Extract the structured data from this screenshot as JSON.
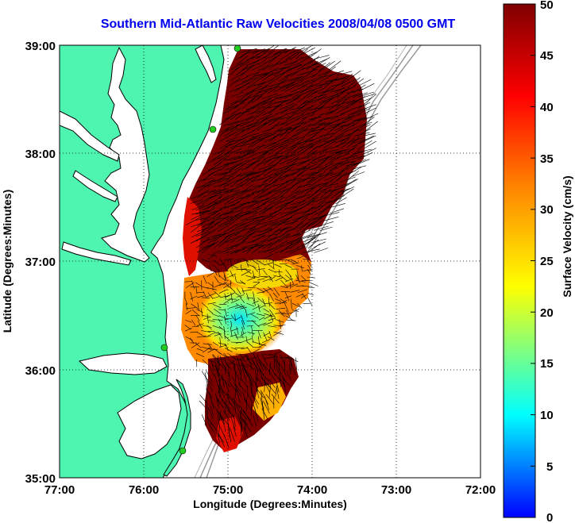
{
  "title": "Southern Mid-Atlantic Raw Velocities 2008/04/08 0500 GMT",
  "x_axis": {
    "label": "Longitude (Degrees:Minutes)",
    "ticks": [
      "77:00",
      "76:00",
      "75:00",
      "74:00",
      "73:00",
      "72:00"
    ]
  },
  "y_axis": {
    "label": "Latitude (Degrees:Minutes)",
    "ticks": [
      "39:00",
      "38:00",
      "37:00",
      "36:00",
      "35:00"
    ]
  },
  "colorbar": {
    "label": "Surface Velocity (cm/s)",
    "ticks": [
      "50",
      "45",
      "40",
      "35",
      "30",
      "25",
      "20",
      "15",
      "10",
      "5",
      "0"
    ],
    "min": 0,
    "max": 50,
    "colormap": [
      "#0000ff",
      "#00ffff",
      "#ffff00",
      "#ff8000",
      "#ff0000",
      "#800000"
    ]
  },
  "colors": {
    "land": "#4df5b0",
    "water_background": "#ffffff",
    "coastline": "#000000",
    "bathymetry": "#9a9a9a",
    "station": "#22cc22",
    "arrows": "#000000"
  },
  "chart_data": {
    "type": "heatmap",
    "title": "Southern Mid-Atlantic Raw Velocities 2008/04/08 0500 GMT",
    "xlabel": "Longitude (Degrees:Minutes)",
    "ylabel": "Latitude (Degrees:Minutes)",
    "xlim": [
      -77,
      -72
    ],
    "ylim": [
      35,
      39
    ],
    "grid": true,
    "colorbar_label": "Surface Velocity (cm/s)",
    "clim": [
      0,
      50
    ],
    "stations": [
      {
        "lon": -74.88,
        "lat": 38.97
      },
      {
        "lon": -75.09,
        "lat": 38.22
      },
      {
        "lon": -75.56,
        "lat": 36.2
      },
      {
        "lon": -75.5,
        "lat": 35.25
      }
    ],
    "velocity_field_summary": [
      {
        "region": "north, 37.5-38.9N",
        "speed_cm_s": 50
      },
      {
        "region": "central, 36.3-36.8N",
        "speed_cm_s": 15
      },
      {
        "region": "south, 35.4-35.8N",
        "speed_cm_s": 35
      }
    ]
  }
}
